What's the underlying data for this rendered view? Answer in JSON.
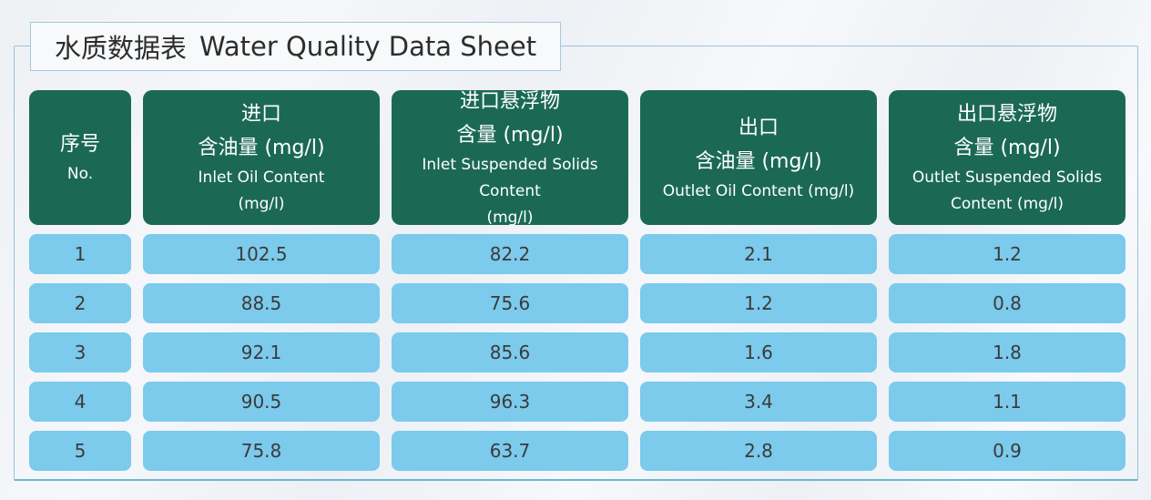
{
  "page": {
    "title_zh": "水质数据表",
    "title_en": "Water Quality Data Sheet"
  },
  "colors": {
    "header_bg": "#1b6955",
    "cell_bg": "#7ccaec",
    "container_border": "#9cc2d6",
    "container_border_bottom": "#6db6cf",
    "title_border": "#a5c8de",
    "page_bg": "#f0f2f5",
    "header_text": "#ffffff",
    "cell_text": "#3b3b3b"
  },
  "table": {
    "headers": [
      {
        "zh_lines": [
          "序号"
        ],
        "en_lines": [
          "No."
        ]
      },
      {
        "zh_lines": [
          "进口",
          "含油量 (mg/l)"
        ],
        "en_lines": [
          "Inlet Oil Content",
          "(mg/l)"
        ]
      },
      {
        "zh_lines": [
          "进口悬浮物",
          "含量 (mg/l)"
        ],
        "en_lines": [
          "Inlet Suspended Solids Content",
          "(mg/l)"
        ]
      },
      {
        "zh_lines": [
          "出口",
          "含油量 (mg/l)"
        ],
        "en_lines": [
          "Outlet Oil Content (mg/l)"
        ]
      },
      {
        "zh_lines": [
          "出口悬浮物",
          "含量 (mg/l)"
        ],
        "en_lines": [
          "Outlet Suspended Solids",
          "Content (mg/l)"
        ]
      }
    ],
    "rows": [
      {
        "cells": [
          "1",
          "102.5",
          "82.2",
          "2.1",
          "1.2"
        ]
      },
      {
        "cells": [
          "2",
          "88.5",
          "75.6",
          "1.2",
          "0.8"
        ]
      },
      {
        "cells": [
          "3",
          "92.1",
          "85.6",
          "1.6",
          "1.8"
        ]
      },
      {
        "cells": [
          "4",
          "90.5",
          "96.3",
          "3.4",
          "1.1"
        ]
      },
      {
        "cells": [
          "5",
          "75.8",
          "63.7",
          "2.8",
          "0.9"
        ]
      }
    ]
  },
  "chart_data": {
    "type": "table",
    "title": "水质数据表 Water Quality Data Sheet",
    "columns": [
      "序号 No.",
      "进口含油量 (mg/l) Inlet Oil Content (mg/l)",
      "进口悬浮物含量 (mg/l) Inlet Suspended Solids Content (mg/l)",
      "出口含油量 (mg/l) Outlet Oil Content (mg/l)",
      "出口悬浮物含量 (mg/l) Outlet Suspended Solids Content (mg/l)"
    ],
    "rows": [
      [
        1,
        102.5,
        82.2,
        2.1,
        1.2
      ],
      [
        2,
        88.5,
        75.6,
        1.2,
        0.8
      ],
      [
        3,
        92.1,
        85.6,
        1.6,
        1.8
      ],
      [
        4,
        90.5,
        96.3,
        3.4,
        1.1
      ],
      [
        5,
        75.8,
        63.7,
        2.8,
        0.9
      ]
    ]
  }
}
